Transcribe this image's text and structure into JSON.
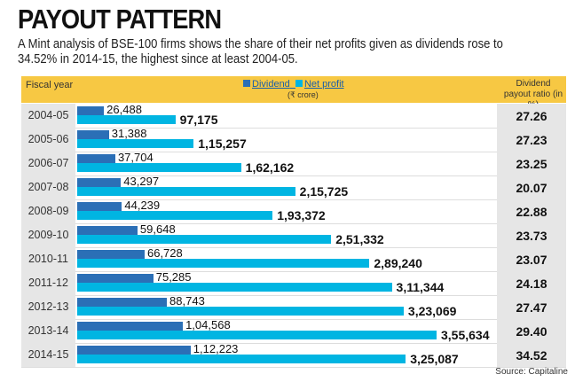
{
  "title": "PAYOUT PATTERN",
  "subtitle": "A Mint analysis of BSE-100 firms shows the share of their net profits given as dividends rose to 34.52% in 2014-15, the highest since at least 2004-05.",
  "source": "Source: Capitaline",
  "chart_data": {
    "type": "bar",
    "header": {
      "category_label": "Fiscal year",
      "unit": "(₹ crore)",
      "ratio_label": "Dividend payout ratio (in %)"
    },
    "categories": [
      "2004-05",
      "2005-06",
      "2006-07",
      "2007-08",
      "2008-09",
      "2009-10",
      "2010-11",
      "2011-12",
      "2012-13",
      "2013-14",
      "2014-15"
    ],
    "series": [
      {
        "name": "Dividend",
        "color": "#2b6fb6",
        "values": [
          26488,
          31388,
          37704,
          43297,
          44239,
          59648,
          66728,
          75285,
          88743,
          104568,
          112223
        ],
        "labels": [
          "26,488",
          "31,388",
          "37,704",
          "43,297",
          "44,239",
          "59,648",
          "66,728",
          "75,285",
          "88,743",
          "1,04,568",
          "1,12,223"
        ]
      },
      {
        "name": "Net profit",
        "color": "#00b5e2",
        "values": [
          97175,
          115257,
          162162,
          215725,
          193372,
          251332,
          289240,
          311344,
          323069,
          355634,
          325087
        ],
        "labels": [
          "97,175",
          "1,15,257",
          "1,62,162",
          "2,15,725",
          "1,93,372",
          "2,51,332",
          "2,89,240",
          "3,11,344",
          "3,23,069",
          "3,55,634",
          "3,25,087"
        ]
      }
    ],
    "payout_ratio": [
      "27.26",
      "27.23",
      "23.25",
      "20.07",
      "22.88",
      "23.73",
      "23.07",
      "24.18",
      "27.47",
      "29.40",
      "34.52"
    ]
  }
}
